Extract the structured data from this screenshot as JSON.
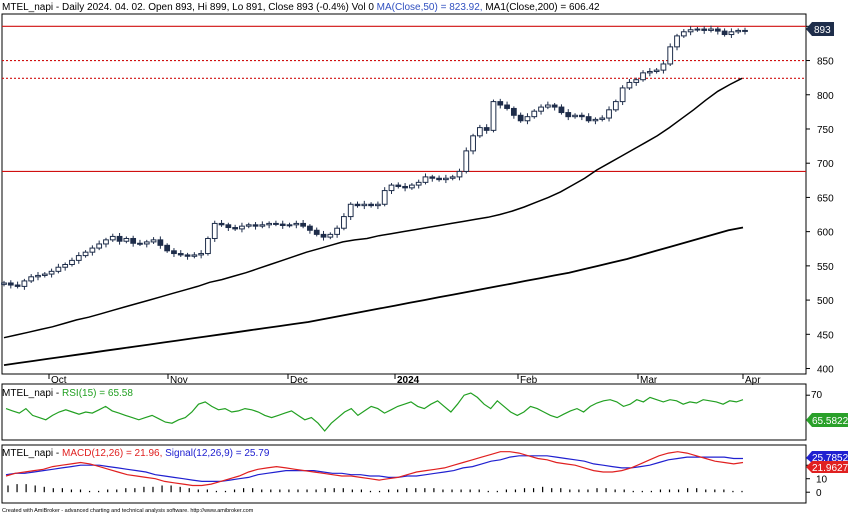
{
  "header": {
    "main": "MTEL_napi - Daily 2024. 04. 02. Open 893, Hi 899, Lo 891, Close 893 (-0.4%) Vol 0",
    "ma50": "MA(Close,50) = 823.92,",
    "ma200": "MA1(Close,200) = 606.42"
  },
  "rsi_header": {
    "symbol": "MTEL_napi -",
    "label": "RSI(15) = 65.58"
  },
  "macd_header": {
    "symbol": "MTEL_napi -",
    "macd": "MACD(12,26) = 21.96,",
    "signal": "Signal(12,26,9) = 25.79"
  },
  "footer": "Created with AmiBroker - advanced charting and technical analysis software. http://www.amibroker.com",
  "price_tag": "893",
  "rsi_tag": "65.5822",
  "macd_tag": "21.9627",
  "signal_tag": "25.7852",
  "colors": {
    "up_candle": "#ffffff",
    "down_candle": "#1e2d4a",
    "hline": "#d01010",
    "ma": "#000000",
    "rsi": "#22a022",
    "macd": "#e02020",
    "signal": "#2020d0",
    "hist": "#000000"
  },
  "chart_data": [
    {
      "type": "candlestick",
      "x_months": [
        "Oct",
        "Nov",
        "Dec",
        "2024",
        "Feb",
        "Mar",
        "Apr"
      ],
      "y_ticks": [
        400,
        450,
        500,
        550,
        600,
        650,
        700,
        750,
        800,
        850,
        900
      ],
      "ylim": [
        392,
        918
      ],
      "horizontal_lines": [
        {
          "value": 900,
          "style": "solid"
        },
        {
          "value": 850,
          "style": "dotted"
        },
        {
          "value": 824,
          "style": "dotted"
        },
        {
          "value": 688,
          "style": "solid"
        }
      ],
      "closes": [
        525,
        522,
        520,
        528,
        534,
        536,
        538,
        542,
        548,
        552,
        558,
        565,
        570,
        576,
        582,
        588,
        593,
        586,
        590,
        583,
        582,
        585,
        588,
        580,
        572,
        568,
        566,
        564,
        566,
        568,
        590,
        612,
        610,
        606,
        604,
        608,
        610,
        608,
        610,
        612,
        611,
        609,
        610,
        612,
        608,
        602,
        596,
        592,
        596,
        605,
        622,
        640,
        638,
        640,
        638,
        640,
        660,
        668,
        666,
        664,
        668,
        672,
        680,
        678,
        676,
        678,
        680,
        688,
        718,
        740,
        752,
        748,
        790,
        785,
        780,
        770,
        762,
        768,
        776,
        782,
        785,
        782,
        774,
        768,
        770,
        768,
        762,
        764,
        766,
        778,
        790,
        810,
        818,
        822,
        832,
        834,
        836,
        845,
        870,
        886,
        892,
        895,
        896,
        894,
        896,
        893,
        888,
        892,
        894,
        893
      ],
      "ma50": [
        445,
        449,
        453,
        457,
        461,
        466,
        471,
        475,
        480,
        485,
        490,
        495,
        500,
        505,
        510,
        515,
        520,
        526,
        530,
        535,
        540,
        546,
        552,
        558,
        564,
        570,
        575,
        580,
        585,
        588,
        590,
        594,
        597,
        600,
        603,
        606,
        609,
        612,
        615,
        618,
        621,
        625,
        630,
        636,
        643,
        650,
        658,
        668,
        678,
        690,
        700,
        710,
        720,
        730,
        740,
        752,
        765,
        778,
        792,
        805,
        815,
        824
      ],
      "ma200": [
        405,
        408,
        411,
        414,
        417,
        420,
        423,
        426,
        429,
        432,
        435,
        438,
        441,
        444,
        447,
        450,
        453,
        456,
        459,
        462,
        465,
        468,
        472,
        476,
        480,
        484,
        488,
        492,
        496,
        500,
        504,
        508,
        512,
        516,
        520,
        524,
        528,
        532,
        536,
        540,
        545,
        550,
        555,
        560,
        566,
        572,
        578,
        584,
        590,
        596,
        602,
        606
      ]
    },
    {
      "type": "line",
      "name": "RSI(15)",
      "yticks": [
        70
      ],
      "values": [
        58,
        56,
        54,
        58,
        52,
        50,
        48,
        52,
        55,
        57,
        55,
        53,
        55,
        54,
        57,
        60,
        56,
        54,
        52,
        50,
        48,
        50,
        52,
        49,
        46,
        45,
        48,
        50,
        55,
        62,
        64,
        60,
        57,
        58,
        55,
        56,
        58,
        57,
        55,
        52,
        50,
        52,
        54,
        56,
        52,
        48,
        50,
        45,
        38,
        45,
        50,
        55,
        58,
        52,
        56,
        60,
        58,
        54,
        57,
        60,
        62,
        64,
        60,
        58,
        62,
        65,
        60,
        55,
        62,
        70,
        72,
        68,
        62,
        58,
        65,
        60,
        55,
        52,
        55,
        60,
        58,
        55,
        52,
        50,
        53,
        56,
        58,
        55,
        60,
        63,
        65,
        66,
        64,
        60,
        62,
        66,
        64,
        68,
        66,
        64,
        66,
        65,
        62,
        64,
        63,
        66,
        65,
        64,
        62,
        65,
        64,
        66
      ]
    },
    {
      "type": "line",
      "series": [
        {
          "name": "MACD(12,26)",
          "values": [
            12,
            14,
            15,
            16,
            17,
            19,
            20,
            21,
            22,
            21,
            19,
            17,
            15,
            13,
            12,
            11,
            10,
            8,
            7,
            6,
            5,
            5,
            6,
            8,
            10,
            12,
            15,
            17,
            18,
            19,
            18,
            17,
            16,
            15,
            14,
            13,
            12,
            12,
            11,
            10,
            9,
            10,
            11,
            13,
            15,
            16,
            17,
            18,
            20,
            22,
            24,
            26,
            28,
            30,
            30,
            29,
            27,
            25,
            24,
            22,
            21,
            20,
            18,
            16,
            15,
            15,
            16,
            18,
            21,
            24,
            27,
            29,
            30,
            29,
            27,
            25,
            23,
            22,
            21,
            22
          ]
        },
        {
          "name": "Signal(12,26,9)",
          "values": [
            13,
            14,
            14,
            15,
            16,
            17,
            18,
            19,
            20,
            20,
            20,
            19,
            18,
            17,
            16,
            15,
            13,
            12,
            11,
            10,
            9,
            8,
            8,
            8,
            9,
            10,
            11,
            13,
            14,
            15,
            16,
            16,
            16,
            16,
            15,
            14,
            14,
            13,
            13,
            12,
            12,
            11,
            11,
            12,
            12,
            13,
            14,
            15,
            16,
            18,
            19,
            21,
            23,
            24,
            26,
            27,
            27,
            27,
            27,
            26,
            25,
            24,
            23,
            21,
            20,
            19,
            18,
            18,
            19,
            20,
            22,
            24,
            25,
            26,
            26,
            26,
            26,
            26,
            25,
            25
          ]
        }
      ],
      "yticks": [
        0,
        10,
        20
      ],
      "histogram": [
        5,
        6,
        6,
        5,
        4,
        3,
        3,
        2,
        2,
        1,
        1,
        2,
        2,
        3,
        3,
        4,
        4,
        5,
        5,
        4,
        3,
        2,
        2,
        1,
        1,
        2,
        3,
        3,
        2,
        2,
        2,
        2,
        2,
        2,
        2,
        3,
        3,
        3,
        2,
        2,
        1,
        1,
        2,
        2,
        3,
        3,
        3,
        3,
        2,
        2,
        2,
        2,
        2,
        1,
        1,
        2,
        2,
        3,
        3,
        4,
        3,
        3,
        2,
        2,
        2,
        3,
        3,
        2,
        2,
        1,
        1,
        1,
        2,
        2,
        2,
        3,
        3,
        2,
        2,
        2,
        1,
        1
      ]
    }
  ]
}
